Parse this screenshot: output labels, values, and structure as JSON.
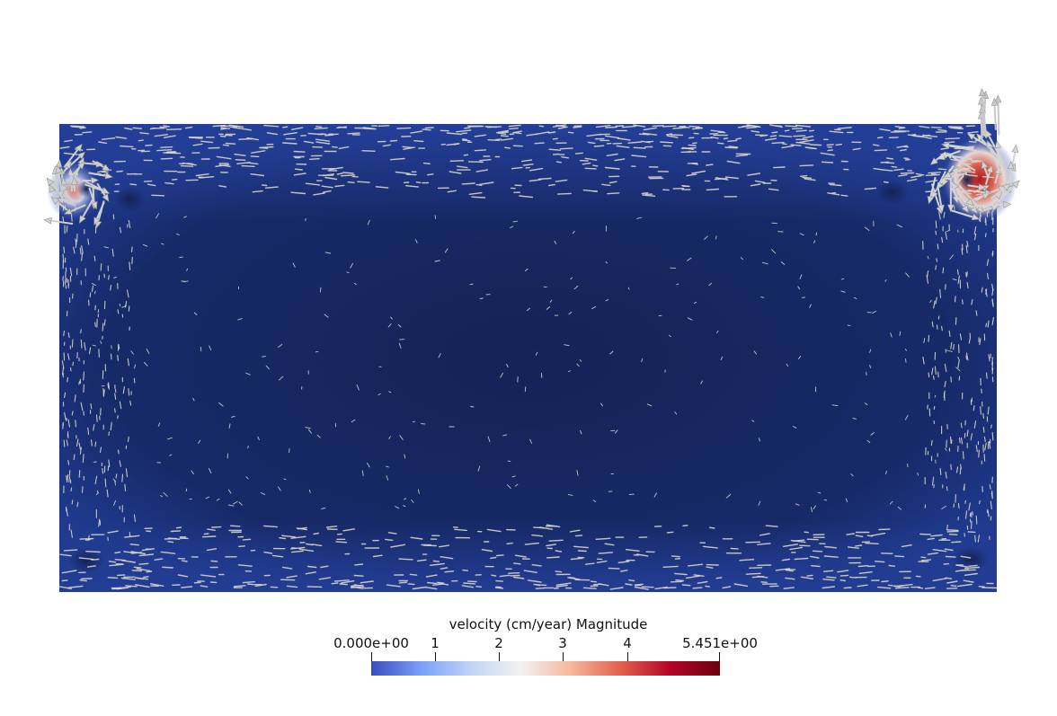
{
  "legend": {
    "title": "velocity (cm/year) Magnitude",
    "ticks": [
      {
        "label": "0.000e+00",
        "value": 0
      },
      {
        "label": "1",
        "value": 1
      },
      {
        "label": "2",
        "value": 2
      },
      {
        "label": "3",
        "value": 3
      },
      {
        "label": "4",
        "value": 4
      },
      {
        "label": "5.451e+00",
        "value": 5.451
      }
    ],
    "range": [
      0,
      5.451
    ],
    "colormap": [
      "#3b4cc0",
      "#7b9ff9",
      "#c0d4f5",
      "#f2f2f2",
      "#f7b89c",
      "#e2614d",
      "#b40426",
      "#6e0010"
    ]
  },
  "colors": {
    "background": "#ffffff",
    "field_dark": "#142357",
    "field_mid": "#1e3a8a",
    "field_edge": "#233f96",
    "glyph": "#d9d6cc",
    "hot": "#b01c1c"
  }
}
